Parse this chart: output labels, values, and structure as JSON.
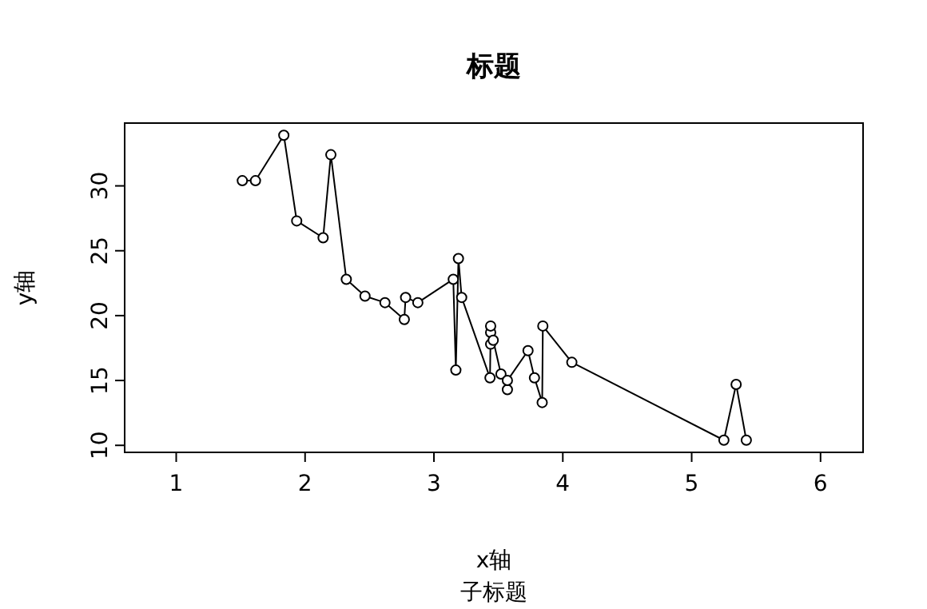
{
  "chart_data": {
    "type": "line",
    "title": "标题",
    "subtitle": "子标题",
    "xlabel": "x轴",
    "ylabel": "y轴",
    "x": [
      1.513,
      1.615,
      1.835,
      1.935,
      2.14,
      2.2,
      2.32,
      2.465,
      2.62,
      2.77,
      2.78,
      2.875,
      3.15,
      3.17,
      3.19,
      3.215,
      3.435,
      3.44,
      3.44,
      3.44,
      3.46,
      3.52,
      3.57,
      3.57,
      3.73,
      3.78,
      3.84,
      3.845,
      4.07,
      5.25,
      5.345,
      5.424
    ],
    "values": [
      30.4,
      30.4,
      33.9,
      27.3,
      26.0,
      32.4,
      22.8,
      21.5,
      21.0,
      19.7,
      21.4,
      21.0,
      22.8,
      15.8,
      24.4,
      21.4,
      15.2,
      18.7,
      19.2,
      17.8,
      18.1,
      15.5,
      14.3,
      15.0,
      17.3,
      15.2,
      13.3,
      19.2,
      16.4,
      10.4,
      14.7,
      10.4
    ],
    "color": "#000000",
    "marker": "circle",
    "line_style": "solid",
    "xlim": [
      0.6,
      6.33
    ],
    "ylim": [
      9.46,
      34.84
    ],
    "xticks": [
      1,
      2,
      3,
      4,
      5,
      6
    ],
    "yticks": [
      10,
      15,
      20,
      25,
      30
    ]
  }
}
